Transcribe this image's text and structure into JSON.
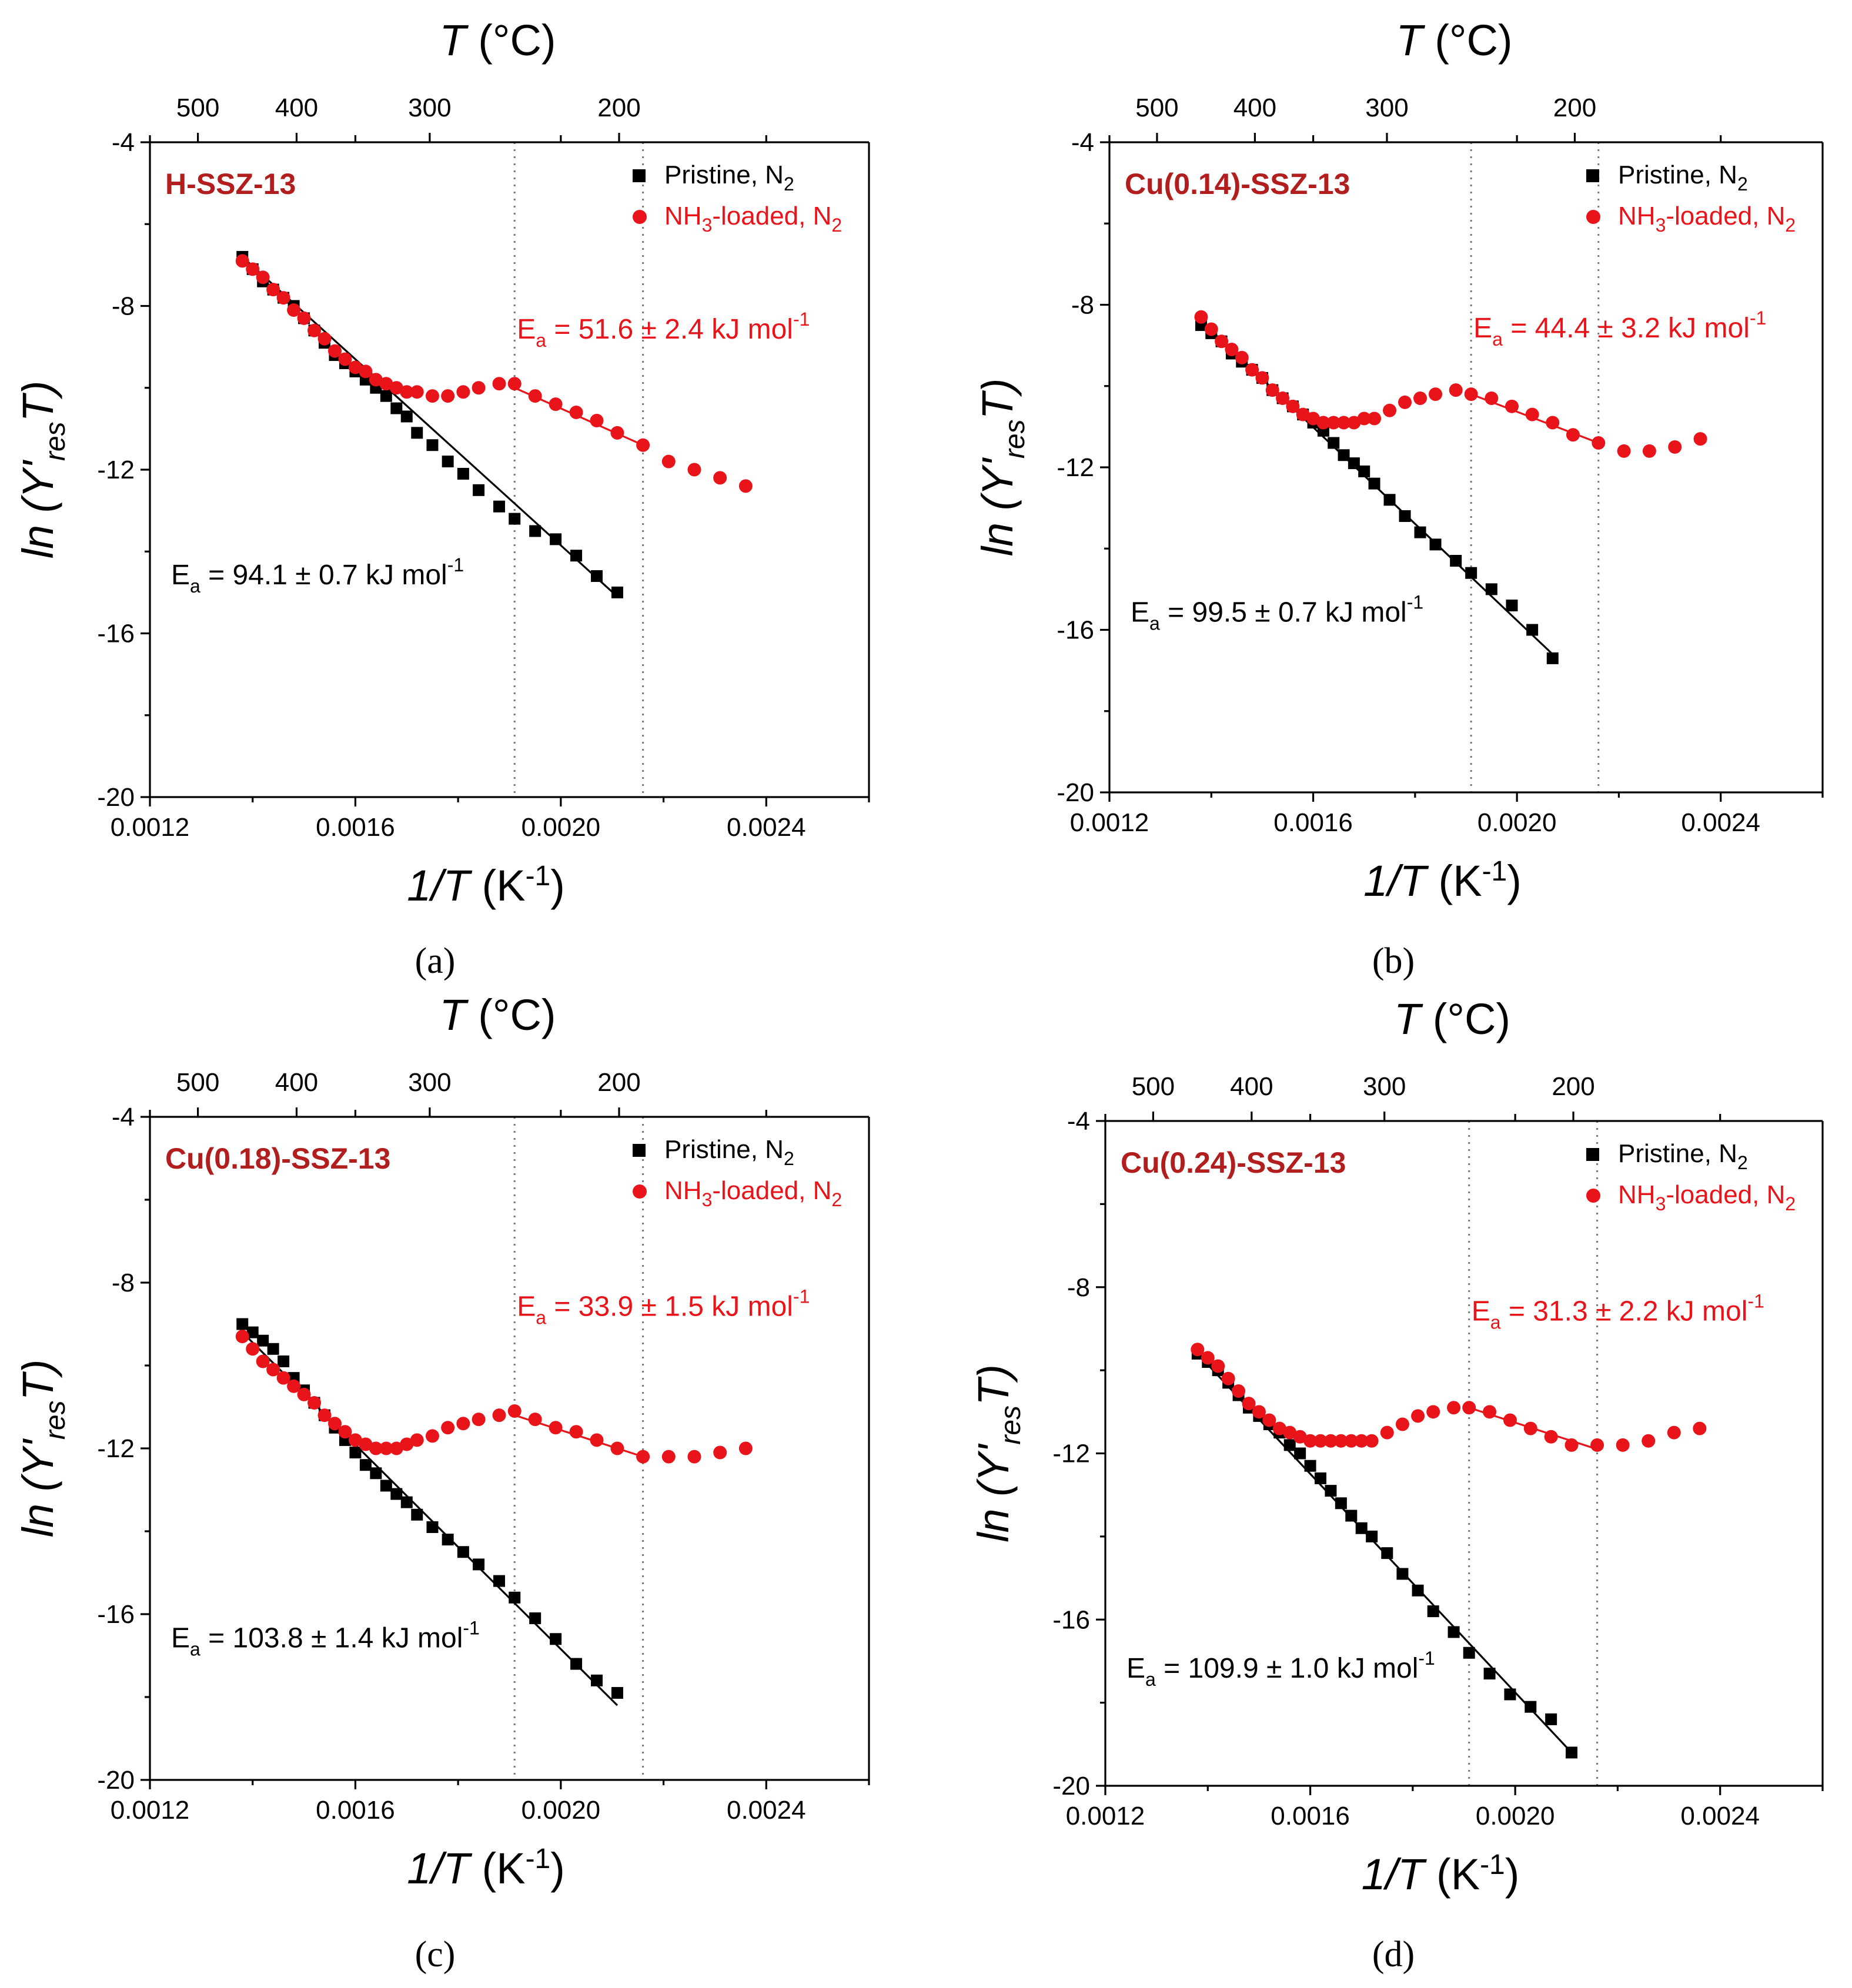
{
  "colors": {
    "pristine": "#000000",
    "nh3": "#e8141a",
    "title": "#b21e1e",
    "guide": "#777777"
  },
  "axes": {
    "bottom_title_a": "1/T",
    "bottom_title_b": " (K",
    "bottom_title_sup": "-1",
    "bottom_title_c": ")",
    "top_title_a": "T",
    "top_title_b": " (°C)",
    "left_title_a": "ln",
    "left_title_b": " (Y'",
    "left_title_sub": "res",
    "left_title_c": "T)",
    "x_ticks": [
      "0.0012",
      "0.0016",
      "0.0020",
      "0.0024"
    ],
    "y_ticks": [
      "-4",
      "-8",
      "-12",
      "-16",
      "-20"
    ],
    "top_ticks": [
      "500",
      "400",
      "300",
      "200"
    ]
  },
  "legend": {
    "pristine": "Pristine, N",
    "pristine_sub": "2",
    "nh3_a": "NH",
    "nh3_sub1": "3",
    "nh3_b": "-loaded, N",
    "nh3_sub2": "2"
  },
  "chart_data": [
    {
      "type": "scatter",
      "panel": "(a)",
      "title": "H-SSZ-13",
      "xlim": [
        0.0012,
        0.0026
      ],
      "ylim": [
        -20,
        -4
      ],
      "top_axis": {
        "label": "T (°C)",
        "ticks_celsius": [
          500,
          400,
          300,
          200
        ]
      },
      "guide_lines_x": [
        0.00191,
        0.00216
      ],
      "series": [
        {
          "name": "Pristine, N2",
          "marker": "square",
          "x": [
            0.00138,
            0.0014,
            0.00142,
            0.00144,
            0.00146,
            0.00148,
            0.0015,
            0.00152,
            0.00154,
            0.00156,
            0.00158,
            0.0016,
            0.00162,
            0.00164,
            0.00166,
            0.00168,
            0.0017,
            0.00172,
            0.00175,
            0.00178,
            0.00181,
            0.00184,
            0.00188,
            0.00191,
            0.00195,
            0.00199,
            0.00203,
            0.00207,
            0.00211
          ],
          "y": [
            -6.8,
            -7.1,
            -7.4,
            -7.6,
            -7.8,
            -8.0,
            -8.3,
            -8.6,
            -8.9,
            -9.2,
            -9.4,
            -9.6,
            -9.8,
            -10.0,
            -10.2,
            -10.5,
            -10.7,
            -11.1,
            -11.4,
            -11.8,
            -12.1,
            -12.5,
            -12.9,
            -13.2,
            -13.5,
            -13.7,
            -14.1,
            -14.6,
            -15.0
          ]
        },
        {
          "name": "NH3-loaded, N2",
          "marker": "circle",
          "x": [
            0.00138,
            0.0014,
            0.00142,
            0.00144,
            0.00146,
            0.00148,
            0.0015,
            0.00152,
            0.00154,
            0.00156,
            0.00158,
            0.0016,
            0.00162,
            0.00164,
            0.00166,
            0.00168,
            0.0017,
            0.00172,
            0.00175,
            0.00178,
            0.00181,
            0.00184,
            0.00188,
            0.00191,
            0.00195,
            0.00199,
            0.00203,
            0.00207,
            0.00211,
            0.00216,
            0.00221,
            0.00226,
            0.00231,
            0.00236
          ],
          "y": [
            -6.9,
            -7.1,
            -7.3,
            -7.6,
            -7.8,
            -8.1,
            -8.3,
            -8.6,
            -8.8,
            -9.1,
            -9.3,
            -9.5,
            -9.6,
            -9.8,
            -9.9,
            -10.0,
            -10.1,
            -10.1,
            -10.2,
            -10.2,
            -10.1,
            -10.0,
            -9.9,
            -9.9,
            -10.2,
            -10.4,
            -10.6,
            -10.8,
            -11.1,
            -11.4,
            -11.8,
            -12.0,
            -12.2,
            -12.4
          ]
        }
      ],
      "fits": [
        {
          "series": "Pristine, N2",
          "x": [
            0.00138,
            0.00211
          ],
          "y": [
            -6.8,
            -15.1
          ]
        },
        {
          "series": "NH3-loaded, N2",
          "x": [
            0.00191,
            0.00216
          ],
          "y": [
            -10.0,
            -11.4
          ]
        }
      ],
      "annotations": {
        "pristine_ea_a": "E",
        "pristine_ea_sub": "a",
        "pristine_ea_b": " = 94.1 ± 0.7 kJ mol",
        "pristine_ea_sup": "-1",
        "nh3_ea_a": "E",
        "nh3_ea_sub": "a",
        "nh3_ea_b": " = 51.6 ± 2.4 kJ mol",
        "nh3_ea_sup": "-1"
      }
    },
    {
      "type": "scatter",
      "panel": "(b)",
      "title": "Cu(0.14)-SSZ-13",
      "xlim": [
        0.0012,
        0.0026
      ],
      "ylim": [
        -20,
        -4
      ],
      "top_axis": {
        "label": "T (°C)",
        "ticks_celsius": [
          500,
          400,
          300,
          200
        ]
      },
      "guide_lines_x": [
        0.00191,
        0.00216
      ],
      "series": [
        {
          "name": "Pristine, N2",
          "marker": "square",
          "x": [
            0.00138,
            0.0014,
            0.00142,
            0.00144,
            0.00146,
            0.00148,
            0.0015,
            0.00152,
            0.00154,
            0.00156,
            0.00158,
            0.0016,
            0.00162,
            0.00164,
            0.00166,
            0.00168,
            0.0017,
            0.00172,
            0.00175,
            0.00178,
            0.00181,
            0.00184,
            0.00188,
            0.00191,
            0.00195,
            0.00199,
            0.00203,
            0.00207
          ],
          "y": [
            -8.5,
            -8.7,
            -8.9,
            -9.2,
            -9.4,
            -9.6,
            -9.8,
            -10.1,
            -10.3,
            -10.5,
            -10.7,
            -10.9,
            -11.1,
            -11.4,
            -11.7,
            -11.9,
            -12.1,
            -12.4,
            -12.8,
            -13.2,
            -13.6,
            -13.9,
            -14.3,
            -14.6,
            -15.0,
            -15.4,
            -16.0,
            -16.7
          ]
        },
        {
          "name": "NH3-loaded, N2",
          "marker": "circle",
          "x": [
            0.00138,
            0.0014,
            0.00142,
            0.00144,
            0.00146,
            0.00148,
            0.0015,
            0.00152,
            0.00154,
            0.00156,
            0.00158,
            0.0016,
            0.00162,
            0.00164,
            0.00166,
            0.00168,
            0.0017,
            0.00172,
            0.00175,
            0.00178,
            0.00181,
            0.00184,
            0.00188,
            0.00191,
            0.00195,
            0.00199,
            0.00203,
            0.00207,
            0.00211,
            0.00216,
            0.00221,
            0.00226,
            0.00231,
            0.00236
          ],
          "y": [
            -8.3,
            -8.6,
            -8.9,
            -9.1,
            -9.3,
            -9.6,
            -9.8,
            -10.1,
            -10.3,
            -10.5,
            -10.7,
            -10.8,
            -10.9,
            -10.9,
            -10.9,
            -10.9,
            -10.8,
            -10.8,
            -10.6,
            -10.4,
            -10.3,
            -10.2,
            -10.1,
            -10.2,
            -10.3,
            -10.5,
            -10.7,
            -10.9,
            -11.2,
            -11.4,
            -11.6,
            -11.6,
            -11.5,
            -11.3
          ]
        }
      ],
      "fits": [
        {
          "series": "Pristine, N2",
          "x": [
            0.00138,
            0.00207
          ],
          "y": [
            -8.4,
            -16.6
          ]
        },
        {
          "series": "NH3-loaded, N2",
          "x": [
            0.00191,
            0.00216
          ],
          "y": [
            -10.2,
            -11.4
          ]
        }
      ],
      "annotations": {
        "pristine_ea_a": "E",
        "pristine_ea_sub": "a",
        "pristine_ea_b": " = 99.5 ± 0.7 kJ mol",
        "pristine_ea_sup": "-1",
        "nh3_ea_a": "E",
        "nh3_ea_sub": "a",
        "nh3_ea_b": " = 44.4 ± 3.2 kJ mol",
        "nh3_ea_sup": "-1"
      }
    },
    {
      "type": "scatter",
      "panel": "(c)",
      "title": "Cu(0.18)-SSZ-13",
      "xlim": [
        0.0012,
        0.0026
      ],
      "ylim": [
        -20,
        -4
      ],
      "top_axis": {
        "label": "T (°C)",
        "ticks_celsius": [
          500,
          400,
          300,
          200
        ]
      },
      "guide_lines_x": [
        0.00191,
        0.00216
      ],
      "series": [
        {
          "name": "Pristine, N2",
          "marker": "square",
          "x": [
            0.00138,
            0.0014,
            0.00142,
            0.00144,
            0.00146,
            0.00148,
            0.0015,
            0.00152,
            0.00154,
            0.00156,
            0.00158,
            0.0016,
            0.00162,
            0.00164,
            0.00166,
            0.00168,
            0.0017,
            0.00172,
            0.00175,
            0.00178,
            0.00181,
            0.00184,
            0.00188,
            0.00191,
            0.00195,
            0.00199,
            0.00203,
            0.00207,
            0.00211
          ],
          "y": [
            -9.0,
            -9.2,
            -9.4,
            -9.6,
            -9.9,
            -10.3,
            -10.6,
            -10.9,
            -11.2,
            -11.5,
            -11.8,
            -12.1,
            -12.4,
            -12.6,
            -12.9,
            -13.1,
            -13.3,
            -13.6,
            -13.9,
            -14.2,
            -14.5,
            -14.8,
            -15.2,
            -15.6,
            -16.1,
            -16.6,
            -17.2,
            -17.6,
            -17.9
          ]
        },
        {
          "name": "NH3-loaded, N2",
          "marker": "circle",
          "x": [
            0.00138,
            0.0014,
            0.00142,
            0.00144,
            0.00146,
            0.00148,
            0.0015,
            0.00152,
            0.00154,
            0.00156,
            0.00158,
            0.0016,
            0.00162,
            0.00164,
            0.00166,
            0.00168,
            0.0017,
            0.00172,
            0.00175,
            0.00178,
            0.00181,
            0.00184,
            0.00188,
            0.00191,
            0.00195,
            0.00199,
            0.00203,
            0.00207,
            0.00211,
            0.00216,
            0.00221,
            0.00226,
            0.00231,
            0.00236
          ],
          "y": [
            -9.3,
            -9.6,
            -9.9,
            -10.1,
            -10.3,
            -10.5,
            -10.7,
            -10.9,
            -11.2,
            -11.4,
            -11.6,
            -11.8,
            -11.9,
            -12.0,
            -12.0,
            -12.0,
            -11.9,
            -11.8,
            -11.7,
            -11.5,
            -11.4,
            -11.3,
            -11.2,
            -11.1,
            -11.3,
            -11.5,
            -11.6,
            -11.8,
            -12.0,
            -12.2,
            -12.2,
            -12.2,
            -12.1,
            -12.0
          ]
        }
      ],
      "fits": [
        {
          "series": "Pristine, N2",
          "x": [
            0.00138,
            0.00211
          ],
          "y": [
            -9.2,
            -18.2
          ]
        },
        {
          "series": "NH3-loaded, N2",
          "x": [
            0.00191,
            0.00216
          ],
          "y": [
            -11.2,
            -12.2
          ]
        }
      ],
      "annotations": {
        "pristine_ea_a": "E",
        "pristine_ea_sub": "a",
        "pristine_ea_b": " = 103.8 ± 1.4 kJ mol",
        "pristine_ea_sup": "-1",
        "nh3_ea_a": "E",
        "nh3_ea_sub": "a",
        "nh3_ea_b": " = 33.9 ± 1.5 kJ mol",
        "nh3_ea_sup": "-1"
      }
    },
    {
      "type": "scatter",
      "panel": "(d)",
      "title": "Cu(0.24)-SSZ-13",
      "xlim": [
        0.0012,
        0.0026
      ],
      "ylim": [
        -20,
        -4
      ],
      "top_axis": {
        "label": "T (°C)",
        "ticks_celsius": [
          500,
          400,
          300,
          200
        ]
      },
      "guide_lines_x": [
        0.00191,
        0.00216
      ],
      "series": [
        {
          "name": "Pristine, N2",
          "marker": "square",
          "x": [
            0.00138,
            0.0014,
            0.00142,
            0.00144,
            0.00146,
            0.00148,
            0.0015,
            0.00152,
            0.00154,
            0.00156,
            0.00158,
            0.0016,
            0.00162,
            0.00164,
            0.00166,
            0.00168,
            0.0017,
            0.00172,
            0.00175,
            0.00178,
            0.00181,
            0.00184,
            0.00188,
            0.00191,
            0.00195,
            0.00199,
            0.00203,
            0.00207,
            0.00211
          ],
          "y": [
            -9.6,
            -9.8,
            -10.0,
            -10.3,
            -10.6,
            -10.9,
            -11.1,
            -11.3,
            -11.5,
            -11.8,
            -12.0,
            -12.3,
            -12.6,
            -12.9,
            -13.2,
            -13.5,
            -13.8,
            -14.0,
            -14.4,
            -14.9,
            -15.3,
            -15.8,
            -16.3,
            -16.8,
            -17.3,
            -17.8,
            -18.1,
            -18.4,
            -19.2
          ]
        },
        {
          "name": "NH3-loaded, N2",
          "marker": "circle",
          "x": [
            0.00138,
            0.0014,
            0.00142,
            0.00144,
            0.00146,
            0.00148,
            0.0015,
            0.00152,
            0.00154,
            0.00156,
            0.00158,
            0.0016,
            0.00162,
            0.00164,
            0.00166,
            0.00168,
            0.0017,
            0.00172,
            0.00175,
            0.00178,
            0.00181,
            0.00184,
            0.00188,
            0.00191,
            0.00195,
            0.00199,
            0.00203,
            0.00207,
            0.00211,
            0.00216,
            0.00221,
            0.00226,
            0.00231,
            0.00236
          ],
          "y": [
            -9.5,
            -9.7,
            -9.9,
            -10.2,
            -10.5,
            -10.8,
            -11.0,
            -11.2,
            -11.4,
            -11.5,
            -11.6,
            -11.7,
            -11.7,
            -11.7,
            -11.7,
            -11.7,
            -11.7,
            -11.7,
            -11.5,
            -11.3,
            -11.1,
            -11.0,
            -10.9,
            -10.9,
            -11.0,
            -11.2,
            -11.4,
            -11.6,
            -11.8,
            -11.8,
            -11.8,
            -11.7,
            -11.5,
            -11.4
          ]
        }
      ],
      "fits": [
        {
          "series": "Pristine, N2",
          "x": [
            0.00138,
            0.00211
          ],
          "y": [
            -9.6,
            -19.2
          ]
        },
        {
          "series": "NH3-loaded, N2",
          "x": [
            0.00191,
            0.00216
          ],
          "y": [
            -10.9,
            -11.9
          ]
        }
      ],
      "annotations": {
        "pristine_ea_a": "E",
        "pristine_ea_sub": "a",
        "pristine_ea_b": " = 109.9 ± 1.0 kJ mol",
        "pristine_ea_sup": "-1",
        "nh3_ea_a": "E",
        "nh3_ea_sub": "a",
        "nh3_ea_b": " = 31.3 ± 2.2 kJ mol",
        "nh3_ea_sup": "-1"
      }
    }
  ]
}
